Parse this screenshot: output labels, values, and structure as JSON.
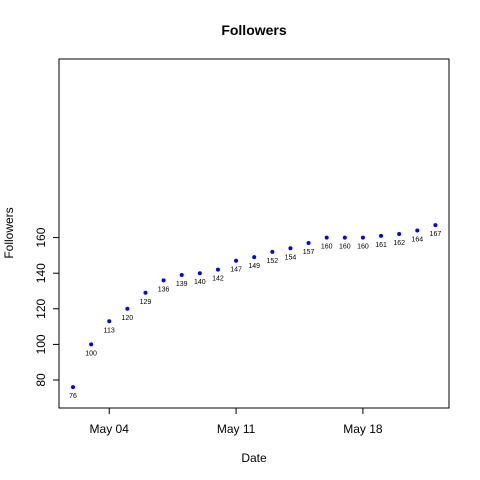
{
  "chart_data": {
    "type": "scatter",
    "title": "Followers",
    "xlabel": "Date",
    "ylabel": "Followers",
    "x_tick_labels": [
      "May 04",
      "May 11",
      "May 18"
    ],
    "y_ticks": [
      80,
      100,
      120,
      140,
      160
    ],
    "x": [
      "May 02",
      "May 03",
      "May 04",
      "May 05",
      "May 06",
      "May 07",
      "May 08",
      "May 09",
      "May 10",
      "May 11",
      "May 12",
      "May 13",
      "May 14",
      "May 15",
      "May 16",
      "May 17",
      "May 18",
      "May 19",
      "May 20",
      "May 21",
      "May 22"
    ],
    "values": [
      76,
      100,
      113,
      120,
      129,
      136,
      139,
      140,
      142,
      147,
      149,
      152,
      154,
      157,
      160,
      160,
      160,
      161,
      162,
      164,
      167
    ],
    "point_color": "#0000ff",
    "ylim": [
      73,
      170
    ],
    "grid": false
  }
}
